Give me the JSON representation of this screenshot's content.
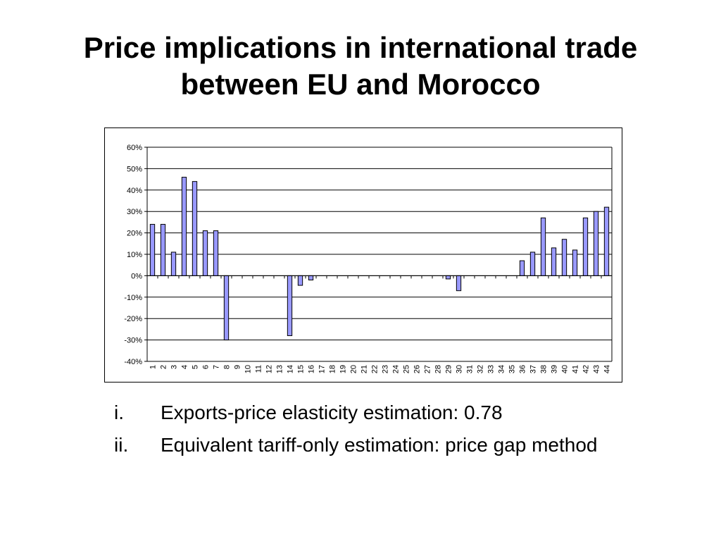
{
  "title": {
    "line1": "Price implications in international trade",
    "line2": "between EU and Morocco"
  },
  "chart_data": {
    "type": "bar",
    "title": "",
    "xlabel": "",
    "ylabel": "",
    "ylim": [
      -0.4,
      0.6
    ],
    "yticks": [
      0.6,
      0.5,
      0.4,
      0.3,
      0.2,
      0.1,
      0.0,
      -0.1,
      -0.2,
      -0.3,
      -0.4
    ],
    "ytick_labels": [
      "60%",
      "50%",
      "40%",
      "30%",
      "20%",
      "10%",
      "0%",
      "-10%",
      "-20%",
      "-30%",
      "-40%"
    ],
    "grid": true,
    "legend": "none",
    "bar_color": "#9999ff",
    "categories": [
      "1",
      "2",
      "3",
      "4",
      "5",
      "6",
      "7",
      "8",
      "9",
      "10",
      "11",
      "12",
      "13",
      "14",
      "15",
      "16",
      "17",
      "18",
      "19",
      "20",
      "21",
      "22",
      "23",
      "24",
      "25",
      "26",
      "27",
      "28",
      "29",
      "30",
      "31",
      "32",
      "33",
      "34",
      "35",
      "36",
      "37",
      "38",
      "39",
      "40",
      "41",
      "42",
      "43",
      "44"
    ],
    "values": [
      0.24,
      0.24,
      0.11,
      0.46,
      0.44,
      0.21,
      0.21,
      -0.3,
      0,
      0,
      0,
      0,
      0,
      -0.28,
      -0.045,
      -0.02,
      0,
      0,
      0,
      0,
      0,
      0,
      0,
      0,
      0,
      0,
      0,
      0,
      -0.015,
      -0.07,
      0,
      0,
      0,
      0,
      0,
      0.07,
      0.11,
      0.27,
      0.13,
      0.17,
      0.12,
      0.27,
      0.3,
      0.32
    ]
  },
  "bullets": [
    {
      "marker": "i.",
      "text": "Exports-price elasticity estimation: 0.78"
    },
    {
      "marker": "ii.",
      "text": "Equivalent tariff-only estimation: price gap method"
    }
  ]
}
